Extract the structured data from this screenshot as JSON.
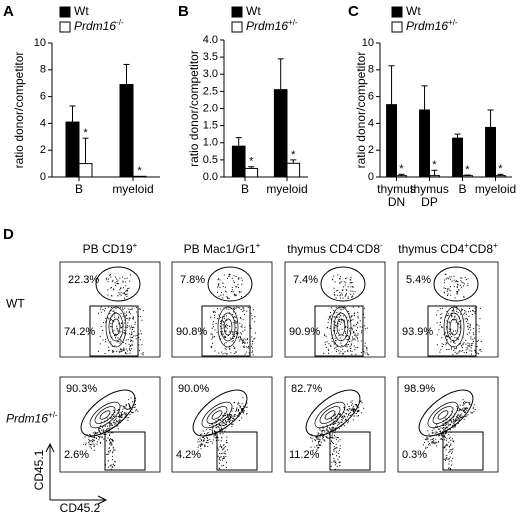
{
  "chart_data": [
    {
      "type": "bar",
      "panel": "A",
      "ylabel": "ratio donor/competitor",
      "categories": [
        [
          "B"
        ],
        [
          "myeloid"
        ]
      ],
      "ylim": [
        0,
        10
      ],
      "yticks": [
        0,
        2,
        4,
        6,
        8,
        10
      ],
      "series": [
        {
          "name": "Wt",
          "color": "#000000",
          "values": [
            4.1,
            6.9
          ],
          "errors": [
            1.2,
            1.5
          ]
        },
        {
          "name": "Prdm16",
          "superscript": "-/-",
          "color": "#ffffff",
          "values": [
            1.0,
            0.05
          ],
          "errors": [
            1.9,
            0
          ],
          "significance": [
            "*",
            "*"
          ]
        }
      ]
    },
    {
      "type": "bar",
      "panel": "B",
      "ylabel": "ratio donor/competitor",
      "categories": [
        [
          "B"
        ],
        [
          "myeloid"
        ]
      ],
      "ylim": [
        0,
        4
      ],
      "yticks": [
        {
          "value": 0,
          "label": "0.0"
        },
        {
          "value": 0.5,
          "label": "0.5"
        },
        {
          "value": 1,
          "label": "1.0"
        },
        {
          "value": 1.5,
          "label": "1.5"
        },
        {
          "value": 2,
          "label": "2.0"
        },
        {
          "value": 2.5,
          "label": "2.5"
        },
        {
          "value": 3,
          "label": "3.0"
        },
        {
          "value": 3.5,
          "label": "3.5"
        },
        {
          "value": 4,
          "label": "4.0"
        }
      ],
      "series": [
        {
          "name": "Wt",
          "color": "#000000",
          "values": [
            0.9,
            2.55
          ],
          "errors": [
            0.25,
            0.9
          ]
        },
        {
          "name": "Prdm16",
          "superscript": "+/-",
          "color": "#ffffff",
          "values": [
            0.25,
            0.4
          ],
          "errors": [
            0.05,
            0.1
          ],
          "significance": [
            "*",
            "*"
          ]
        }
      ]
    },
    {
      "type": "bar",
      "panel": "C",
      "ylabel": "ratio donor/competitor",
      "categories": [
        [
          "thymus",
          "DN"
        ],
        [
          "thymus",
          "DP"
        ],
        [
          "B"
        ],
        [
          "myeloid"
        ]
      ],
      "ylim": [
        0,
        10
      ],
      "yticks": [
        0,
        2,
        4,
        6,
        8,
        10
      ],
      "series": [
        {
          "name": "Wt",
          "color": "#000000",
          "values": [
            5.4,
            5.0,
            2.9,
            3.7
          ],
          "errors": [
            2.9,
            1.8,
            0.3,
            1.3
          ]
        },
        {
          "name": "Prdm16",
          "superscript": "+/-",
          "color": "#ffffff",
          "values": [
            0.1,
            0.1,
            0.1,
            0.1
          ],
          "errors": [
            0.1,
            0.4,
            0.05,
            0.1
          ],
          "significance": [
            "*",
            "*",
            "*",
            "*"
          ]
        }
      ]
    }
  ],
  "flow": {
    "panel": "D",
    "columns": [
      [
        "PB CD19",
        "+"
      ],
      [
        "PB Mac1/Gr1",
        "+"
      ],
      [
        "thymus CD4",
        "-",
        "CD8",
        "-"
      ],
      [
        "thymus CD4",
        "+",
        "CD8",
        "+"
      ]
    ],
    "rows": [
      [
        "WT"
      ],
      [
        "Prdm16",
        "+/-"
      ]
    ],
    "percents": [
      [
        [
          "22.3%",
          "74.2%"
        ],
        [
          "7.8%",
          "90.8%"
        ],
        [
          "7.4%",
          "90.9%"
        ],
        [
          "5.4%",
          "93.9%"
        ]
      ],
      [
        [
          "90.3%",
          "2.6%"
        ],
        [
          "90.0%",
          "4.2%"
        ],
        [
          "82.7%",
          "11.2%"
        ],
        [
          "98.9%",
          "0.3%"
        ]
      ]
    ],
    "y_axis": "CD45.1",
    "x_axis": "CD45.2"
  }
}
